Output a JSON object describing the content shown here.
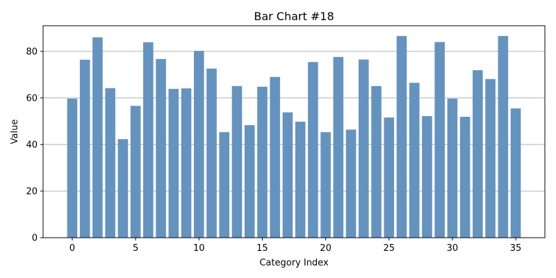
{
  "chart_data": {
    "type": "bar",
    "title": "Bar Chart #18",
    "xlabel": "Category Index",
    "ylabel": "Value",
    "x": [
      0,
      1,
      2,
      3,
      4,
      5,
      6,
      7,
      8,
      9,
      10,
      11,
      12,
      13,
      14,
      15,
      16,
      17,
      18,
      19,
      20,
      21,
      22,
      23,
      24,
      25,
      26,
      27,
      28,
      29,
      30,
      31,
      32,
      33,
      34,
      35
    ],
    "values": [
      59.7,
      76.4,
      86.0,
      64.2,
      42.3,
      56.6,
      83.9,
      76.7,
      63.9,
      64.1,
      80.2,
      72.6,
      45.3,
      65.1,
      48.3,
      64.8,
      69.0,
      53.8,
      49.8,
      75.4,
      45.3,
      77.6,
      46.4,
      76.5,
      65.1,
      51.6,
      86.6,
      66.5,
      52.2,
      84.0,
      59.7,
      51.9,
      71.9,
      68.1,
      86.6,
      55.5
    ],
    "xlim": [
      -2.3,
      37.3
    ],
    "ylim": [
      0,
      91
    ],
    "xticks": [
      0,
      5,
      10,
      15,
      20,
      25,
      30,
      35
    ],
    "yticks": [
      0,
      20,
      40,
      60,
      80
    ],
    "grid": "y-major",
    "bar_color": "#6593c0",
    "grid_color": "#b0b0b0"
  }
}
